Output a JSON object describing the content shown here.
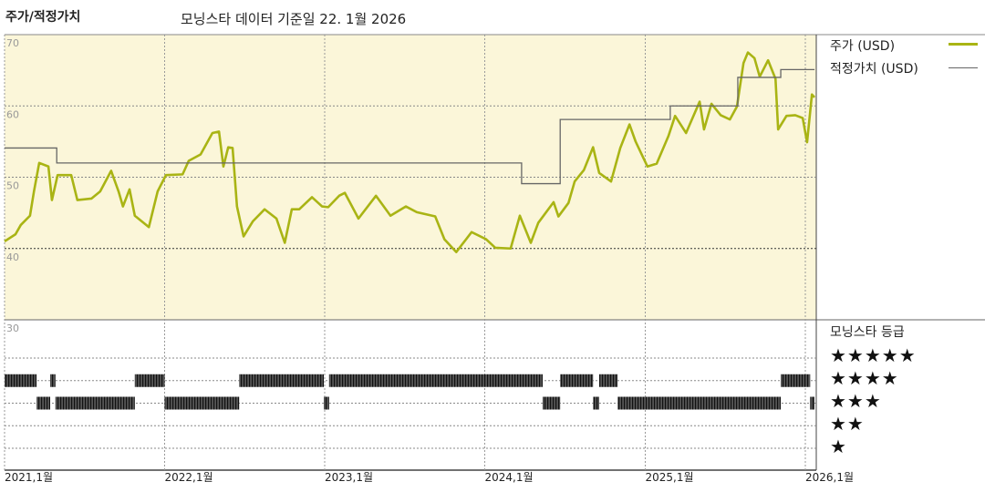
{
  "header": {
    "title": "주가/적정가치",
    "subtitle": "모닝스타 데이터 기준일 22. 1월 2026"
  },
  "legend": {
    "price_label": "주가 (USD)",
    "fair_value_label": "적정가치 (USD)",
    "rating_title": "모닝스타 등급",
    "rating_rows": [
      "★★★★★",
      "★★★★",
      "★★★",
      "★★",
      "★"
    ]
  },
  "colors": {
    "plot_background": "#fbf6d9",
    "price": "#a9b414",
    "fair_value": "#666666",
    "rating_bar": "#333333"
  },
  "chart_data": {
    "type": "line",
    "title": "주가/적정가치",
    "xlabel": "",
    "ylabel": "",
    "xlim": [
      "2021-01-01",
      "2026-01-27"
    ],
    "ylim": [
      30,
      70
    ],
    "y_ticks": [
      "70",
      "60",
      "50",
      "40",
      "30"
    ],
    "x_ticks": [
      {
        "date": "2021-01-01",
        "label": "2021,1월"
      },
      {
        "date": "2022-01-01",
        "label": "2022,1월"
      },
      {
        "date": "2023-01-01",
        "label": "2023,1월"
      },
      {
        "date": "2024-01-01",
        "label": "2024,1월"
      },
      {
        "date": "2025-01-01",
        "label": "2025,1월"
      },
      {
        "date": "2026-01-01",
        "label": "2026,1월"
      }
    ],
    "grid": true,
    "legend_placement": "right",
    "series": [
      {
        "name": "주가 (USD)",
        "kind": "line",
        "points": [
          [
            "2021-01-01",
            41
          ],
          [
            "2021-01-26",
            42
          ],
          [
            "2021-02-07",
            43.3
          ],
          [
            "2021-02-28",
            44.6
          ],
          [
            "2021-03-09",
            48
          ],
          [
            "2021-03-21",
            52
          ],
          [
            "2021-04-11",
            51.5
          ],
          [
            "2021-04-19",
            46.8
          ],
          [
            "2021-05-02",
            50.3
          ],
          [
            "2021-06-02",
            50.3
          ],
          [
            "2021-06-16",
            46.8
          ],
          [
            "2021-07-18",
            47
          ],
          [
            "2021-08-07",
            48
          ],
          [
            "2021-09-01",
            50.9
          ],
          [
            "2021-09-18",
            48
          ],
          [
            "2021-09-28",
            45.9
          ],
          [
            "2021-10-13",
            48.3
          ],
          [
            "2021-10-25",
            44.6
          ],
          [
            "2021-11-26",
            43
          ],
          [
            "2021-12-16",
            48
          ],
          [
            "2022-01-04",
            50.3
          ],
          [
            "2022-02-11",
            50.4
          ],
          [
            "2022-02-25",
            52.3
          ],
          [
            "2022-03-24",
            53.2
          ],
          [
            "2022-04-20",
            56.2
          ],
          [
            "2022-05-05",
            56.4
          ],
          [
            "2022-05-15",
            51.5
          ],
          [
            "2022-05-26",
            54.2
          ],
          [
            "2022-06-05",
            54.1
          ],
          [
            "2022-06-15",
            45.9
          ],
          [
            "2022-06-30",
            41.7
          ],
          [
            "2022-07-21",
            43.8
          ],
          [
            "2022-08-17",
            45.5
          ],
          [
            "2022-09-13",
            44.2
          ],
          [
            "2022-10-02",
            40.8
          ],
          [
            "2022-10-18",
            45.5
          ],
          [
            "2022-11-04",
            45.5
          ],
          [
            "2022-12-03",
            47.2
          ],
          [
            "2022-12-26",
            45.9
          ],
          [
            "2023-01-09",
            45.8
          ],
          [
            "2023-02-03",
            47.4
          ],
          [
            "2023-02-16",
            47.8
          ],
          [
            "2023-03-19",
            44.2
          ],
          [
            "2023-04-28",
            47.4
          ],
          [
            "2023-05-31",
            44.6
          ],
          [
            "2023-07-05",
            45.9
          ],
          [
            "2023-07-30",
            45.1
          ],
          [
            "2023-09-10",
            44.5
          ],
          [
            "2023-10-01",
            41.3
          ],
          [
            "2023-10-28",
            39.5
          ],
          [
            "2023-12-02",
            42.3
          ],
          [
            "2024-01-04",
            41.3
          ],
          [
            "2024-01-25",
            40.1
          ],
          [
            "2024-02-29",
            40
          ],
          [
            "2024-03-21",
            44.6
          ],
          [
            "2024-04-15",
            40.8
          ],
          [
            "2024-05-02",
            43.6
          ],
          [
            "2024-06-06",
            46.5
          ],
          [
            "2024-06-17",
            44.5
          ],
          [
            "2024-07-10",
            46.4
          ],
          [
            "2024-07-24",
            49.4
          ],
          [
            "2024-08-14",
            51
          ],
          [
            "2024-09-04",
            54.2
          ],
          [
            "2024-09-18",
            50.6
          ],
          [
            "2024-10-15",
            49.4
          ],
          [
            "2024-11-05",
            54.1
          ],
          [
            "2024-11-26",
            57.4
          ],
          [
            "2024-12-10",
            55
          ],
          [
            "2025-01-06",
            51.5
          ],
          [
            "2025-01-27",
            51.9
          ],
          [
            "2025-02-23",
            55.8
          ],
          [
            "2025-03-10",
            58.6
          ],
          [
            "2025-04-04",
            56.2
          ],
          [
            "2025-05-05",
            60.6
          ],
          [
            "2025-05-15",
            56.7
          ],
          [
            "2025-06-01",
            60.3
          ],
          [
            "2025-06-22",
            58.7
          ],
          [
            "2025-07-13",
            58.1
          ],
          [
            "2025-07-29",
            59.9
          ],
          [
            "2025-08-13",
            66
          ],
          [
            "2025-08-23",
            67.5
          ],
          [
            "2025-09-07",
            66.7
          ],
          [
            "2025-09-19",
            64.1
          ],
          [
            "2025-10-08",
            66.4
          ],
          [
            "2025-10-25",
            63.8
          ],
          [
            "2025-10-31",
            56.7
          ],
          [
            "2025-11-19",
            58.6
          ],
          [
            "2025-12-09",
            58.7
          ],
          [
            "2025-12-26",
            58.3
          ],
          [
            "2026-01-05",
            54.9
          ],
          [
            "2026-01-16",
            61.6
          ],
          [
            "2026-01-22",
            61.2
          ]
        ]
      },
      {
        "name": "적정가치 (USD)",
        "kind": "step",
        "points": [
          [
            "2021-01-01",
            54.1
          ],
          [
            "2021-04-30",
            52
          ],
          [
            "2024-03-25",
            49.1
          ],
          [
            "2024-06-21",
            58.1
          ],
          [
            "2025-02-27",
            60
          ],
          [
            "2025-07-31",
            64
          ],
          [
            "2025-11-06",
            65.1
          ],
          [
            "2026-01-22",
            65.1
          ]
        ]
      }
    ],
    "rating": {
      "title": "모닝스타 등급",
      "segments": [
        {
          "stars": 4,
          "from": "2021-01-01",
          "to": "2021-03-15"
        },
        {
          "stars": 3,
          "from": "2021-03-15",
          "to": "2021-04-15"
        },
        {
          "stars": 4,
          "from": "2021-04-15",
          "to": "2021-04-27"
        },
        {
          "stars": 3,
          "from": "2021-04-27",
          "to": "2021-10-25"
        },
        {
          "stars": 4,
          "from": "2021-10-25",
          "to": "2022-01-01"
        },
        {
          "stars": 3,
          "from": "2022-01-01",
          "to": "2022-06-20"
        },
        {
          "stars": 4,
          "from": "2022-06-20",
          "to": "2022-12-30"
        },
        {
          "stars": 3,
          "from": "2022-12-30",
          "to": "2023-01-11"
        },
        {
          "stars": 4,
          "from": "2023-01-11",
          "to": "2024-05-12"
        },
        {
          "stars": 3,
          "from": "2024-05-12",
          "to": "2024-06-21"
        },
        {
          "stars": 4,
          "from": "2024-06-21",
          "to": "2024-09-04"
        },
        {
          "stars": 3,
          "from": "2024-09-04",
          "to": "2024-09-18"
        },
        {
          "stars": 4,
          "from": "2024-09-18",
          "to": "2024-10-30"
        },
        {
          "stars": 3,
          "from": "2024-10-30",
          "to": "2025-11-06"
        },
        {
          "stars": 4,
          "from": "2025-11-06",
          "to": "2026-01-12"
        },
        {
          "stars": 3,
          "from": "2026-01-12",
          "to": "2026-01-22"
        }
      ]
    }
  }
}
